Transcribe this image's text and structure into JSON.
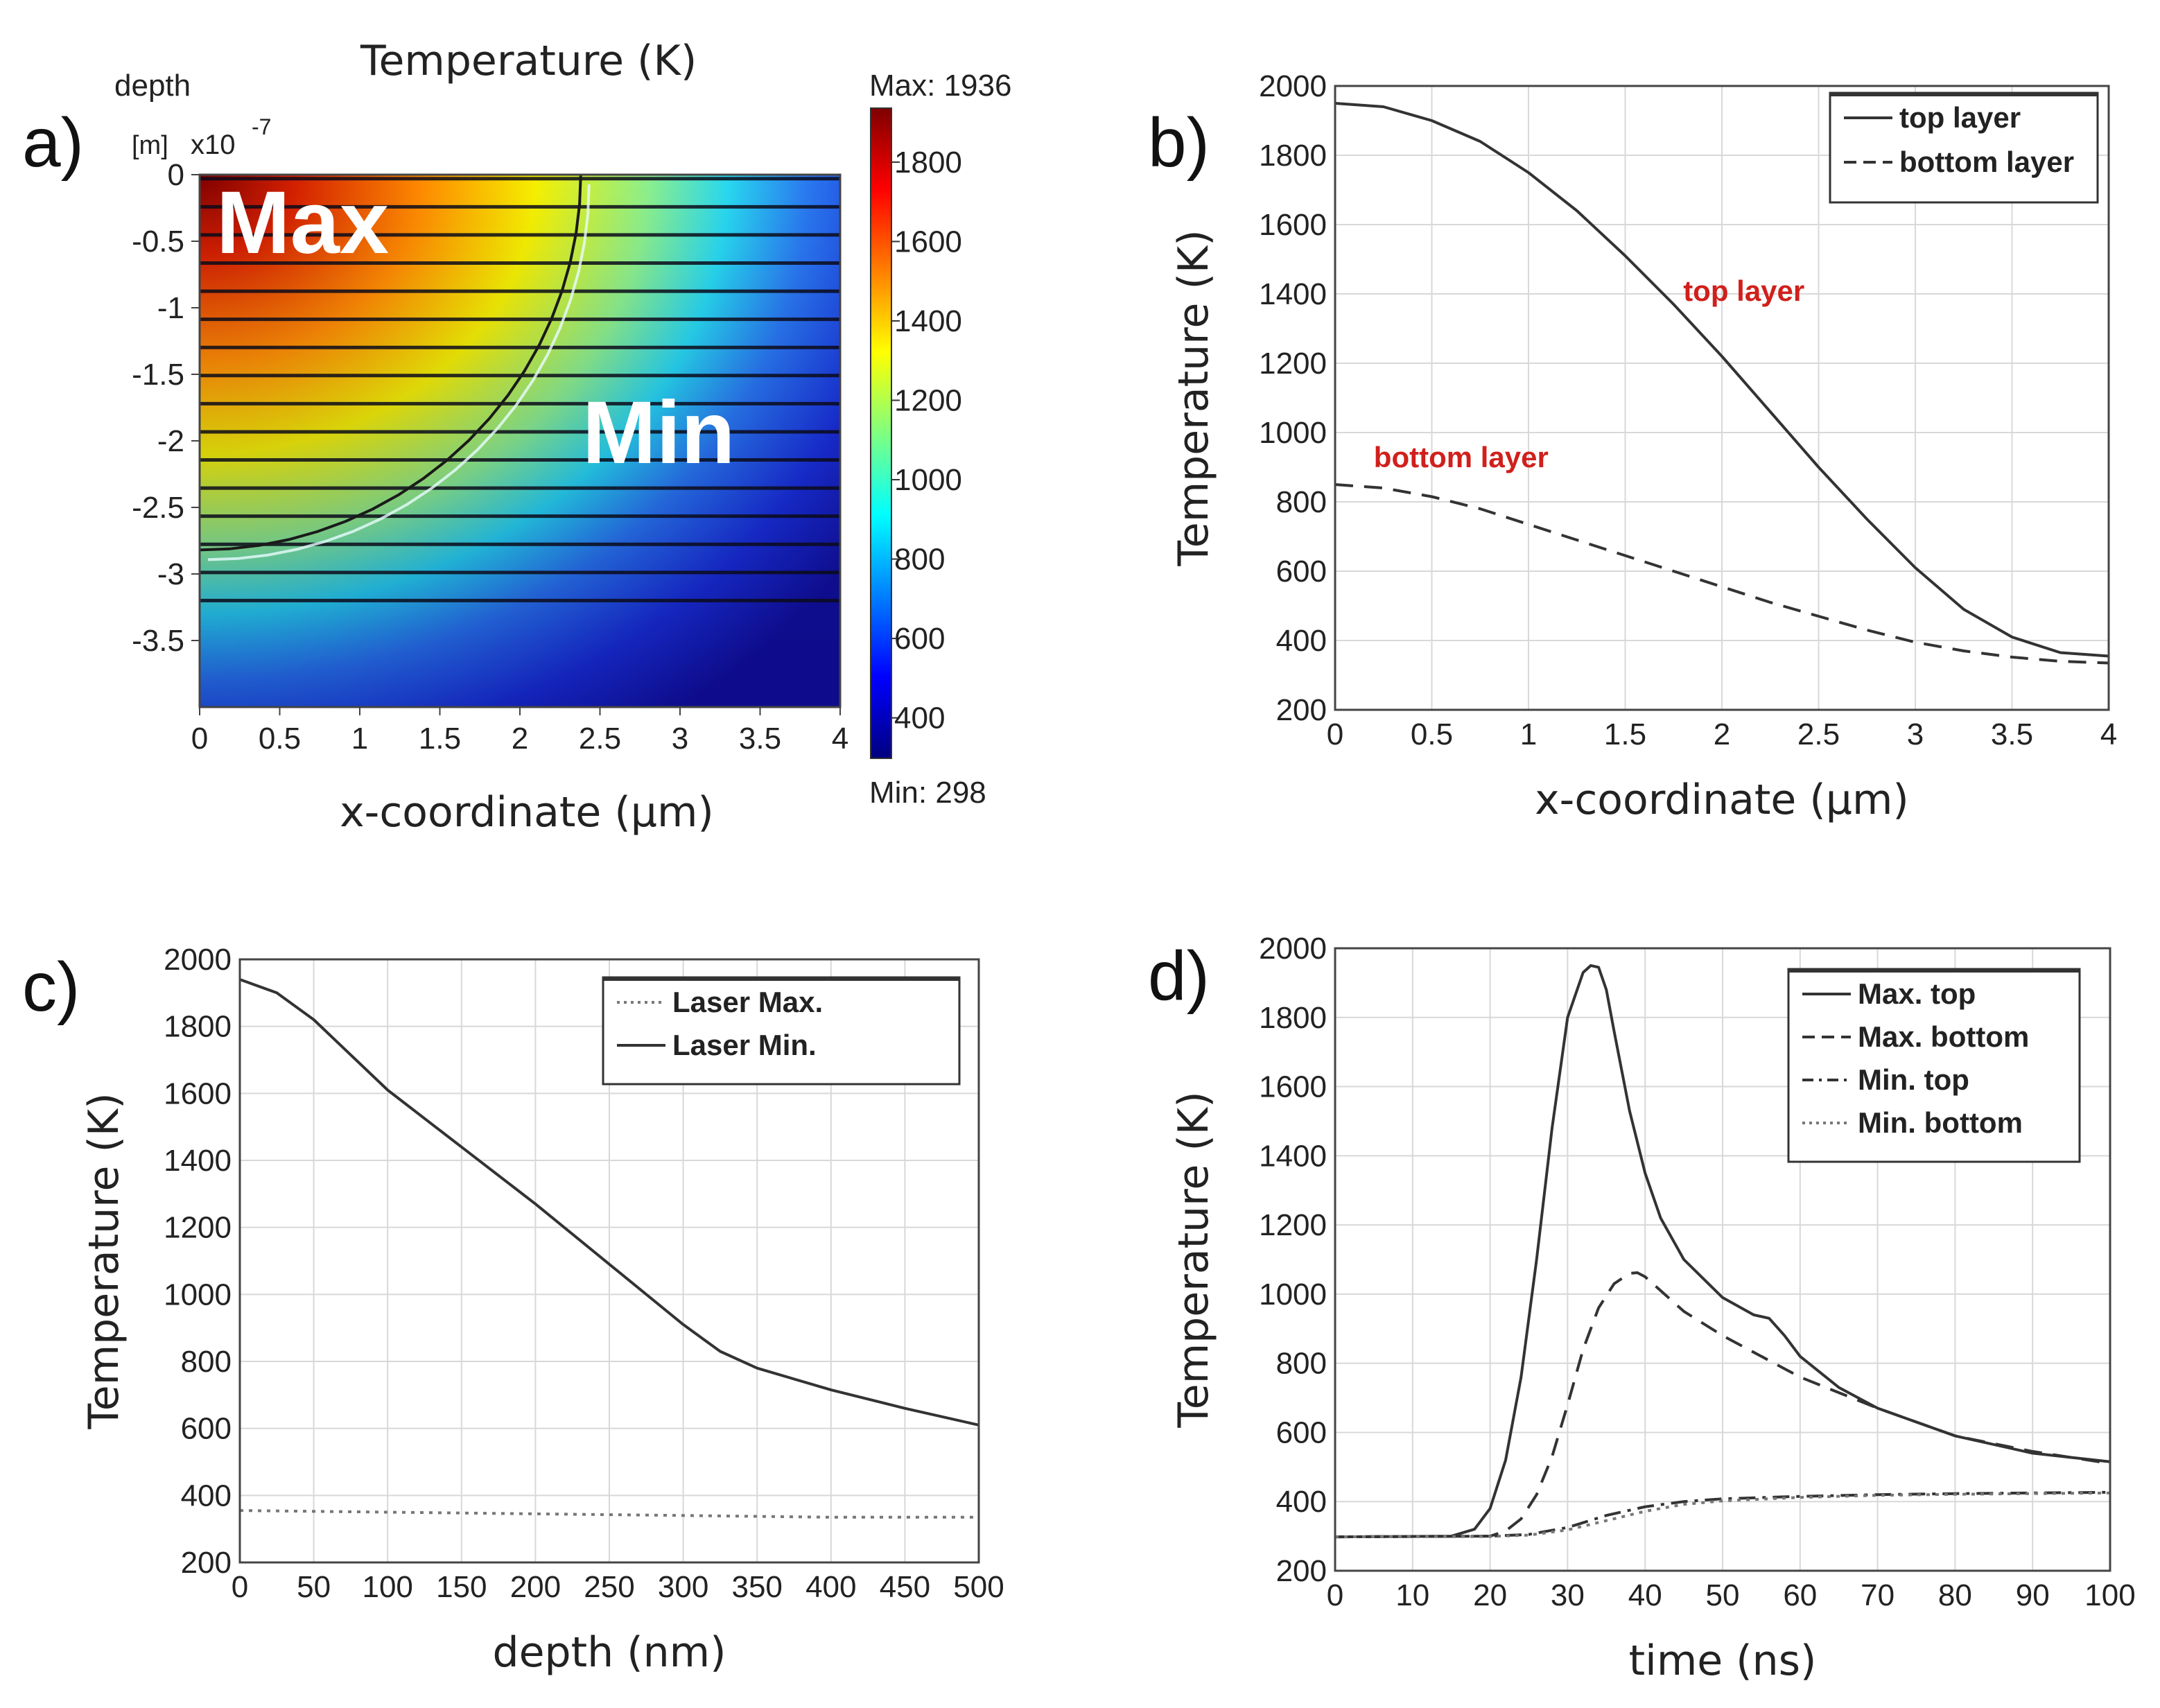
{
  "colors": {
    "curve": "#333333",
    "grid": "#d8d8d8",
    "annotation": "#d0201c",
    "colormap": [
      "#00007f",
      "#0000ff",
      "#007fff",
      "#00ffff",
      "#7fff7f",
      "#ffff00",
      "#ff7f00",
      "#ff0000",
      "#7f0000"
    ]
  },
  "chart_data": [
    {
      "id": "a",
      "type": "heatmap",
      "panel_label": "a)",
      "title": "Temperature (K)",
      "xlabel": "x-coordinate (μm)",
      "ylabel": "depth",
      "y_unit_label": "[m]",
      "y_scale_text": "x10",
      "y_scale_exp": "-7",
      "xlim": [
        0,
        4
      ],
      "ylim": [
        -4,
        0
      ],
      "xticks": [
        "0",
        "0.5",
        "1",
        "1.5",
        "2",
        "2.5",
        "3",
        "3.5",
        "4"
      ],
      "yticks": [
        "0",
        "-0.5",
        "-1",
        "-1.5",
        "-2",
        "-2.5",
        "-3",
        "-3.5"
      ],
      "colorbar": {
        "min_text": "Min: 298",
        "max_text": "Max: 1936",
        "min": 298,
        "max": 1936,
        "ticks": [
          "1800",
          "1600",
          "1400",
          "1200",
          "1000",
          "800",
          "600",
          "400"
        ]
      },
      "labels": {
        "max": "Max",
        "min": "Min"
      },
      "layers": 16
    },
    {
      "id": "b",
      "type": "line",
      "panel_label": "b)",
      "xlabel": "x-coordinate (μm)",
      "ylabel": "Temperature (K)",
      "xlim": [
        0,
        4
      ],
      "ylim": [
        200,
        2000
      ],
      "xticks": [
        "0",
        "0.5",
        "1",
        "1.5",
        "2",
        "2.5",
        "3",
        "3.5",
        "4"
      ],
      "yticks": [
        "200",
        "400",
        "600",
        "800",
        "1000",
        "1200",
        "1400",
        "1600",
        "1800",
        "2000"
      ],
      "annotations": [
        "top layer",
        "bottom layer"
      ],
      "series": [
        {
          "name": "top layer",
          "style": "solid",
          "x": [
            0,
            0.25,
            0.5,
            0.75,
            1,
            1.25,
            1.5,
            1.75,
            2,
            2.25,
            2.5,
            2.75,
            3,
            3.25,
            3.5,
            3.75,
            4
          ],
          "y": [
            1950,
            1940,
            1900,
            1840,
            1750,
            1640,
            1510,
            1370,
            1220,
            1060,
            900,
            750,
            610,
            490,
            410,
            365,
            355
          ]
        },
        {
          "name": "bottom layer",
          "style": "dashed",
          "x": [
            0,
            0.25,
            0.5,
            0.75,
            1,
            1.25,
            1.5,
            1.75,
            2,
            2.25,
            2.5,
            2.75,
            3,
            3.25,
            3.5,
            3.75,
            4
          ],
          "y": [
            850,
            840,
            815,
            780,
            735,
            690,
            645,
            600,
            555,
            510,
            470,
            430,
            395,
            370,
            352,
            340,
            335
          ]
        }
      ]
    },
    {
      "id": "c",
      "type": "line",
      "panel_label": "c)",
      "xlabel": "depth (nm)",
      "ylabel": "Temperature (K)",
      "xlim": [
        0,
        500
      ],
      "ylim": [
        200,
        2000
      ],
      "xticks": [
        "0",
        "50",
        "100",
        "150",
        "200",
        "250",
        "300",
        "350",
        "400",
        "450",
        "500"
      ],
      "yticks": [
        "200",
        "400",
        "600",
        "800",
        "1000",
        "1200",
        "1400",
        "1600",
        "1800",
        "2000"
      ],
      "series": [
        {
          "name": "Laser Max.",
          "style": "dotted",
          "x": [
            0,
            100,
            200,
            300,
            400,
            500
          ],
          "y": [
            355,
            350,
            345,
            340,
            335,
            335
          ]
        },
        {
          "name": "Laser Min.",
          "style": "solid",
          "x": [
            0,
            25,
            50,
            100,
            150,
            200,
            250,
            300,
            325,
            350,
            400,
            450,
            500
          ],
          "y": [
            1940,
            1900,
            1820,
            1610,
            1440,
            1270,
            1090,
            910,
            830,
            780,
            715,
            660,
            610
          ]
        }
      ]
    },
    {
      "id": "d",
      "type": "line",
      "panel_label": "d)",
      "xlabel": "time (ns)",
      "ylabel": "Temperature (K)",
      "xlim": [
        0,
        100
      ],
      "ylim": [
        200,
        2000
      ],
      "xticks": [
        "0",
        "10",
        "20",
        "30",
        "40",
        "50",
        "60",
        "70",
        "80",
        "90",
        "100"
      ],
      "yticks": [
        "200",
        "400",
        "600",
        "800",
        "1000",
        "1200",
        "1400",
        "1600",
        "1800",
        "2000"
      ],
      "series": [
        {
          "name": "Max. top",
          "style": "solid",
          "x": [
            0,
            15,
            18,
            20,
            22,
            24,
            26,
            28,
            30,
            32,
            33,
            34,
            35,
            36,
            38,
            40,
            42,
            45,
            50,
            54,
            56,
            58,
            60,
            65,
            70,
            80,
            90,
            100
          ],
          "y": [
            298,
            300,
            320,
            380,
            520,
            760,
            1100,
            1480,
            1800,
            1930,
            1950,
            1945,
            1880,
            1760,
            1530,
            1350,
            1220,
            1100,
            990,
            940,
            930,
            880,
            820,
            730,
            670,
            590,
            540,
            515
          ]
        },
        {
          "name": "Max. bottom",
          "style": "dashed",
          "x": [
            0,
            20,
            22,
            24,
            26,
            28,
            30,
            32,
            34,
            36,
            38,
            39,
            40,
            42,
            45,
            50,
            55,
            60,
            70,
            80,
            90,
            100
          ],
          "y": [
            298,
            300,
            315,
            350,
            420,
            530,
            680,
            840,
            960,
            1030,
            1060,
            1062,
            1050,
            1010,
            950,
            880,
            820,
            760,
            670,
            590,
            545,
            510
          ]
        },
        {
          "name": "Min. top",
          "style": "dashdot",
          "x": [
            0,
            20,
            25,
            30,
            35,
            40,
            45,
            50,
            60,
            70,
            80,
            90,
            100
          ],
          "y": [
            298,
            300,
            305,
            325,
            360,
            385,
            400,
            408,
            415,
            420,
            423,
            425,
            427
          ]
        },
        {
          "name": "Min. bottom",
          "style": "dotted",
          "x": [
            0,
            20,
            25,
            30,
            35,
            40,
            45,
            50,
            60,
            70,
            80,
            90,
            100
          ],
          "y": [
            298,
            299,
            303,
            318,
            345,
            372,
            392,
            402,
            412,
            418,
            421,
            423,
            425
          ]
        }
      ]
    }
  ]
}
